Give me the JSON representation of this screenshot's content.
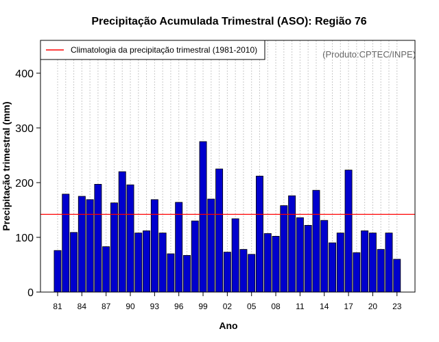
{
  "chart_data": {
    "type": "bar",
    "title": "Precipitação Acumulada Trimestral (ASO): Região 76",
    "xlabel": "Ano",
    "ylabel": "Precipitação trimestral (mm)",
    "ylim": [
      0,
      460
    ],
    "yticks": [
      0,
      100,
      200,
      300,
      400
    ],
    "categories": [
      "1981",
      "1982",
      "1983",
      "1984",
      "1985",
      "1986",
      "1987",
      "1988",
      "1989",
      "1990",
      "1991",
      "1992",
      "1993",
      "1994",
      "1995",
      "1996",
      "1997",
      "1998",
      "1999",
      "2000",
      "2001",
      "2002",
      "2003",
      "2004",
      "2005",
      "2006",
      "2007",
      "2008",
      "2009",
      "2010",
      "2011",
      "2012",
      "2013",
      "2014",
      "2015",
      "2016",
      "2017",
      "2018",
      "2019",
      "2020",
      "2021",
      "2022",
      "2023"
    ],
    "xtick_labels": [
      {
        "index": 0,
        "label": "81"
      },
      {
        "index": 3,
        "label": "84"
      },
      {
        "index": 6,
        "label": "87"
      },
      {
        "index": 9,
        "label": "90"
      },
      {
        "index": 12,
        "label": "93"
      },
      {
        "index": 15,
        "label": "96"
      },
      {
        "index": 18,
        "label": "99"
      },
      {
        "index": 21,
        "label": "02"
      },
      {
        "index": 24,
        "label": "05"
      },
      {
        "index": 27,
        "label": "08"
      },
      {
        "index": 30,
        "label": "11"
      },
      {
        "index": 33,
        "label": "14"
      },
      {
        "index": 36,
        "label": "17"
      },
      {
        "index": 39,
        "label": "20"
      },
      {
        "index": 42,
        "label": "23"
      }
    ],
    "values": [
      76,
      179,
      109,
      175,
      169,
      197,
      83,
      163,
      220,
      196,
      108,
      112,
      169,
      108,
      70,
      164,
      67,
      130,
      275,
      170,
      225,
      73,
      134,
      78,
      69,
      212,
      107,
      102,
      158,
      176,
      136,
      122,
      186,
      131,
      90,
      108,
      223,
      72,
      112,
      108,
      78,
      108,
      60
    ],
    "bar_color": "#0000cd",
    "climatology": 142,
    "climatology_color": "#ff0000",
    "legend": {
      "label": "Climatologia da precipitação trimestral (1981-2010)",
      "position": "top-left"
    },
    "grid": "vertical dotted"
  },
  "credit": "(Produto:CPTEC/INPE)"
}
